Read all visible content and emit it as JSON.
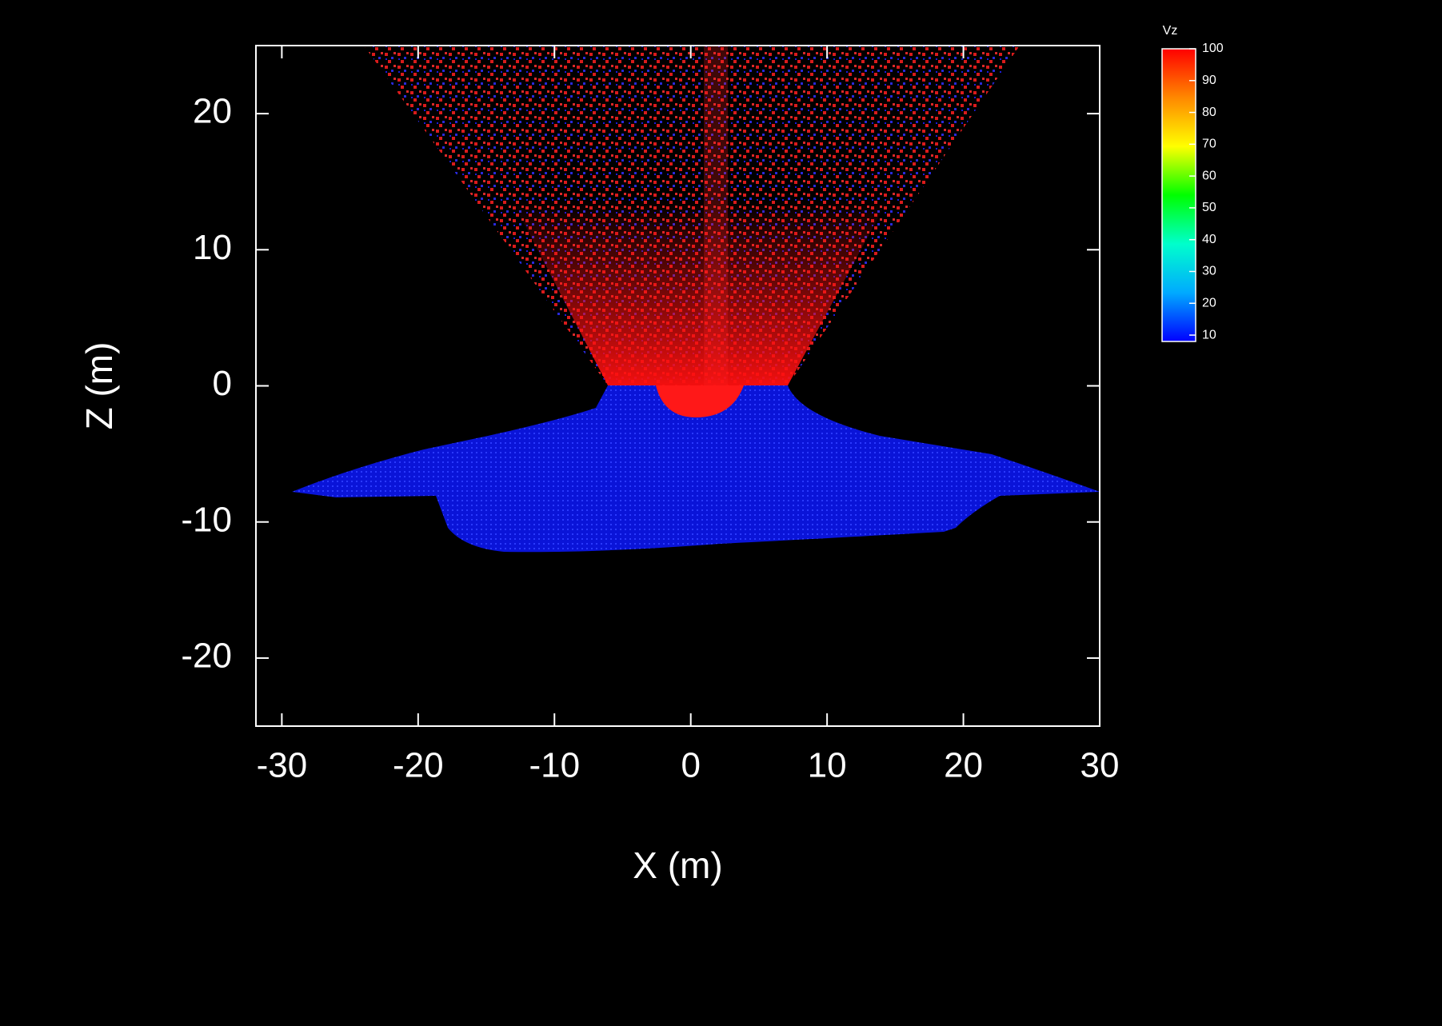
{
  "chart_data": {
    "type": "particle-field",
    "xlabel": "X (m)",
    "ylabel": "Z (m)",
    "xlim": [
      -31.9,
      30
    ],
    "xticks": [
      -30,
      -20,
      -10,
      0,
      10,
      20,
      30
    ],
    "ylim": [
      -25,
      25
    ],
    "yticks": [
      -20,
      -10,
      0,
      10,
      20
    ],
    "colorbar": {
      "title": "Vz",
      "lim": [
        8,
        100
      ],
      "ticks": [
        10,
        20,
        30,
        40,
        50,
        60,
        70,
        80,
        90,
        100
      ],
      "colors": [
        "#0000ff",
        "#00aaff",
        "#00ffcc",
        "#00ff00",
        "#ffff00",
        "#ff8800",
        "#ff0000"
      ]
    }
  }
}
